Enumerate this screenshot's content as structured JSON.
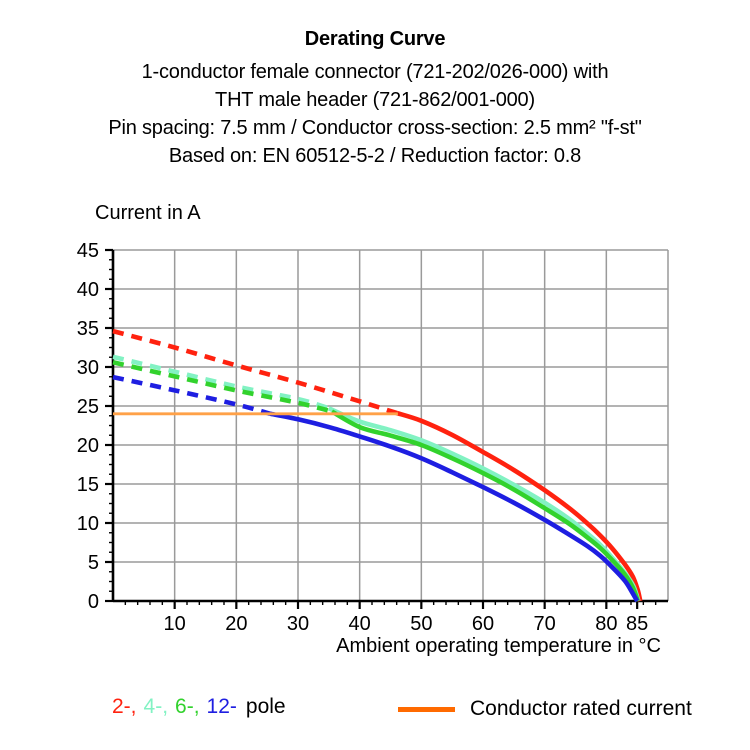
{
  "header": {
    "title": "Derating Curve",
    "subtitle_lines": [
      "1-conductor female connector (721-202/026-000) with",
      "THT male header (721-862/001-000)",
      "Pin spacing: 7.5 mm / Conductor cross-section: 2.5 mm² \"f-st\"",
      "Based on: EN 60512-5-2 / Reduction factor: 0.8"
    ]
  },
  "chart_data": {
    "type": "line",
    "title": "Derating Curve",
    "ylabel": "Current in A",
    "xlabel": "Ambient operating temperature in °C",
    "xlim": [
      0,
      90
    ],
    "ylim": [
      0,
      45
    ],
    "x_major_ticks": [
      10,
      20,
      30,
      40,
      50,
      60,
      70,
      80,
      85
    ],
    "x_gridline_step": 10,
    "y_major_ticks": [
      0,
      5,
      10,
      15,
      20,
      25,
      30,
      35,
      40,
      45
    ],
    "x_minor_step": 2,
    "y_minor_step": 1.25,
    "grid": true,
    "grid_color": "#9a9a9a",
    "axis_color": "#000000",
    "rated_current_A": 24,
    "series": [
      {
        "name": "2-pole",
        "color": "#ff220f",
        "width": 4.6,
        "dashed_points": [
          [
            0,
            34.6
          ],
          [
            10,
            32.5
          ],
          [
            20,
            30.2
          ],
          [
            30,
            28.0
          ],
          [
            40,
            25.6
          ],
          [
            46,
            24.1
          ]
        ],
        "solid_points": [
          [
            46,
            24.1
          ],
          [
            50,
            23.1
          ],
          [
            55,
            21.3
          ],
          [
            60,
            19.1
          ],
          [
            65,
            16.8
          ],
          [
            70,
            14.2
          ],
          [
            74,
            11.9
          ],
          [
            77,
            9.9
          ],
          [
            79,
            8.4
          ],
          [
            81,
            6.7
          ],
          [
            83,
            4.7
          ],
          [
            84.3,
            3.1
          ],
          [
            85.1,
            1.4
          ],
          [
            85.5,
            0
          ]
        ]
      },
      {
        "name": "4-pole",
        "color": "#82f2c3",
        "width": 4.6,
        "dashed_points": [
          [
            0,
            31.3
          ],
          [
            10,
            29.4
          ],
          [
            20,
            27.5
          ],
          [
            30,
            25.9
          ],
          [
            35,
            24.7
          ]
        ],
        "solid_points": [
          [
            35,
            24.7
          ],
          [
            40,
            23.0
          ],
          [
            45,
            21.9
          ],
          [
            50,
            20.6
          ],
          [
            55,
            18.9
          ],
          [
            60,
            17.0
          ],
          [
            65,
            14.9
          ],
          [
            70,
            12.6
          ],
          [
            74,
            10.5
          ],
          [
            77,
            8.6
          ],
          [
            79,
            7.2
          ],
          [
            81,
            5.5
          ],
          [
            83,
            3.6
          ],
          [
            84.4,
            1.9
          ],
          [
            85.2,
            0
          ]
        ]
      },
      {
        "name": "6-pole",
        "color": "#32d22d",
        "width": 4.6,
        "dashed_points": [
          [
            0,
            30.6
          ],
          [
            10,
            28.8
          ],
          [
            20,
            27.0
          ],
          [
            30,
            25.4
          ],
          [
            35.5,
            24.3
          ]
        ],
        "solid_points": [
          [
            35.5,
            24.3
          ],
          [
            40,
            22.3
          ],
          [
            45,
            21.2
          ],
          [
            50,
            20.0
          ],
          [
            55,
            18.3
          ],
          [
            60,
            16.4
          ],
          [
            65,
            14.3
          ],
          [
            70,
            11.9
          ],
          [
            74,
            9.9
          ],
          [
            77,
            8.1
          ],
          [
            79,
            6.8
          ],
          [
            81,
            5.2
          ],
          [
            83,
            3.4
          ],
          [
            84.3,
            1.7
          ],
          [
            85.1,
            0
          ]
        ]
      },
      {
        "name": "12-pole",
        "color": "#1e1ee1",
        "width": 4.6,
        "dashed_points": [
          [
            0,
            28.7
          ],
          [
            10,
            27.0
          ],
          [
            20,
            25.2
          ],
          [
            25.5,
            24.0
          ]
        ],
        "solid_points": [
          [
            25.5,
            24.0
          ],
          [
            30,
            23.3
          ],
          [
            35,
            22.3
          ],
          [
            40,
            21.1
          ],
          [
            45,
            19.8
          ],
          [
            50,
            18.3
          ],
          [
            55,
            16.5
          ],
          [
            60,
            14.6
          ],
          [
            65,
            12.6
          ],
          [
            70,
            10.4
          ],
          [
            74,
            8.5
          ],
          [
            77,
            7.0
          ],
          [
            79,
            5.8
          ],
          [
            81,
            4.3
          ],
          [
            83,
            2.6
          ],
          [
            84.2,
            1.1
          ],
          [
            85,
            0
          ]
        ]
      },
      {
        "name": "Conductor rated current",
        "color": "#ffa148",
        "width": 2.8,
        "solid_points": [
          [
            0,
            24
          ],
          [
            46.2,
            24
          ]
        ]
      }
    ]
  },
  "legend": {
    "pole_items": [
      {
        "label": "2-,",
        "color": "#ff220f"
      },
      {
        "label": "4-,",
        "color": "#82f2c3"
      },
      {
        "label": "6-,",
        "color": "#32d22d"
      },
      {
        "label": "12-",
        "color": "#1e1ee1"
      }
    ],
    "pole_suffix": "pole",
    "rated_label": "Conductor rated current",
    "rated_color": "#ff6a00"
  }
}
